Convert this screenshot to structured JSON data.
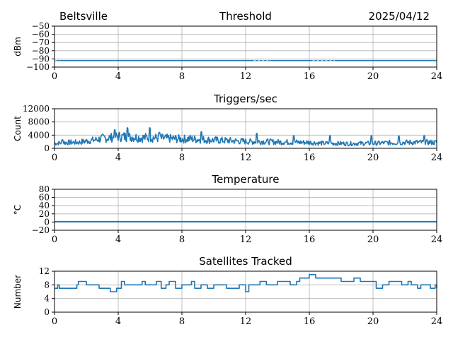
{
  "header": {
    "location": "Beltsville",
    "date": "2025/04/12"
  },
  "colors": {
    "series": "#1f77b4",
    "grid": "#b0b0b0",
    "axis": "#000000"
  },
  "chart_data": [
    {
      "type": "line",
      "title": "Threshold",
      "ylabel": "dBm",
      "xlim": [
        0,
        24
      ],
      "ylim": [
        -100,
        -50
      ],
      "xticks": [
        0,
        4,
        8,
        12,
        16,
        20,
        24
      ],
      "yticks": [
        -100,
        -90,
        -80,
        -70,
        -60,
        -50
      ],
      "xtick_labels": [
        "0",
        "4",
        "8",
        "12",
        "16",
        "20",
        "24"
      ],
      "ytick_labels": [
        "−100",
        "−90",
        "−80",
        "−70",
        "−60",
        "−50"
      ],
      "grid": true,
      "series": [
        {
          "x": [
            0,
            1,
            2,
            3,
            4,
            5,
            6,
            7,
            8,
            9,
            10,
            11,
            12,
            13,
            14,
            15,
            16,
            17,
            18,
            19,
            20,
            21,
            22,
            23,
            24
          ],
          "values": [
            -92,
            -92,
            -92,
            -92,
            -92,
            -92,
            -92,
            -92,
            -92,
            -92,
            -92,
            -92,
            -92,
            -92,
            -92,
            -92,
            -92,
            -92,
            -92,
            -92,
            -92,
            -92,
            -92,
            -92,
            -92
          ]
        }
      ]
    },
    {
      "type": "line",
      "title": "Triggers/sec",
      "ylabel": "Count",
      "xlim": [
        0,
        24
      ],
      "ylim": [
        0,
        12000
      ],
      "xticks": [
        0,
        4,
        8,
        12,
        16,
        20,
        24
      ],
      "yticks": [
        0,
        4000,
        8000,
        12000
      ],
      "xtick_labels": [
        "0",
        "4",
        "8",
        "12",
        "16",
        "20",
        "24"
      ],
      "ytick_labels": [
        "0",
        "4000",
        "8000",
        "12000"
      ],
      "grid": true,
      "series": [
        {
          "x": [
            0,
            0.5,
            1,
            1.5,
            2,
            2.5,
            3,
            3.5,
            4,
            4.5,
            5,
            5.5,
            6,
            6.5,
            7,
            7.5,
            8,
            8.5,
            9,
            9.5,
            10,
            10.5,
            11,
            11.5,
            12,
            12.5,
            13,
            13.5,
            14,
            14.5,
            15,
            15.5,
            16,
            16.5,
            17,
            17.5,
            18,
            18.5,
            19,
            19.5,
            20,
            20.5,
            21,
            21.5,
            22,
            22.5,
            23,
            23.5,
            24
          ],
          "values": [
            1500,
            1700,
            1800,
            1800,
            2200,
            2500,
            3000,
            3200,
            3600,
            3500,
            3400,
            3200,
            3300,
            3100,
            3000,
            2900,
            2800,
            2900,
            2700,
            2600,
            2500,
            2400,
            2300,
            2200,
            2100,
            2000,
            2100,
            2000,
            1900,
            1900,
            1900,
            1800,
            1800,
            1600,
            1500,
            1500,
            1500,
            1400,
            1500,
            1500,
            1500,
            1600,
            1700,
            1700,
            1800,
            1800,
            1800,
            1800,
            1800
          ],
          "peaks": [
            {
              "x": 0.5,
              "y": 2600
            },
            {
              "x": 3.8,
              "y": 5600
            },
            {
              "x": 4.6,
              "y": 6200
            },
            {
              "x": 6.0,
              "y": 6200
            },
            {
              "x": 6.6,
              "y": 4800
            },
            {
              "x": 9.2,
              "y": 5000
            },
            {
              "x": 12.7,
              "y": 4500
            },
            {
              "x": 15.0,
              "y": 3800
            },
            {
              "x": 17.3,
              "y": 3800
            },
            {
              "x": 19.9,
              "y": 3800
            },
            {
              "x": 21.6,
              "y": 3700
            },
            {
              "x": 23.2,
              "y": 3800
            }
          ]
        }
      ]
    },
    {
      "type": "line",
      "title": "Temperature",
      "ylabel": "°C",
      "xlim": [
        0,
        24
      ],
      "ylim": [
        -20,
        80
      ],
      "xticks": [
        0,
        4,
        8,
        12,
        16,
        20,
        24
      ],
      "yticks": [
        -20,
        0,
        20,
        40,
        60,
        80
      ],
      "xtick_labels": [
        "0",
        "4",
        "8",
        "12",
        "16",
        "20",
        "24"
      ],
      "ytick_labels": [
        "−20",
        "0",
        "20",
        "40",
        "60",
        "80"
      ],
      "grid": true,
      "series": [
        {
          "x": [
            0,
            24
          ],
          "values": [
            1,
            1
          ]
        }
      ]
    },
    {
      "type": "line",
      "title": "Satellites Tracked",
      "ylabel": "Number",
      "xlim": [
        0,
        24
      ],
      "ylim": [
        0,
        12
      ],
      "xticks": [
        0,
        4,
        8,
        12,
        16,
        20,
        24
      ],
      "yticks": [
        0,
        4,
        8,
        12
      ],
      "xtick_labels": [
        "0",
        "4",
        "8",
        "12",
        "16",
        "20",
        "24"
      ],
      "ytick_labels": [
        "0",
        "4",
        "8",
        "12"
      ],
      "grid": true,
      "series": [
        {
          "x": [
            0,
            0.2,
            0.3,
            0.5,
            1.0,
            1.4,
            1.5,
            2.0,
            2.1,
            2.8,
            3.5,
            3.9,
            4.2,
            4.4,
            4.8,
            5.2,
            5.5,
            5.7,
            6.2,
            6.4,
            6.6,
            6.7,
            7.0,
            7.2,
            7.6,
            8.0,
            8.3,
            8.6,
            8.8,
            9.2,
            9.6,
            10.0,
            10.4,
            10.8,
            11.2,
            11.6,
            12.0,
            12.2,
            12.6,
            12.9,
            13.3,
            13.6,
            14.0,
            14.4,
            14.8,
            15.2,
            15.4,
            15.7,
            16.0,
            16.4,
            17.0,
            17.4,
            18.0,
            18.4,
            18.8,
            19.2,
            19.8,
            20.2,
            20.6,
            21.0,
            21.4,
            21.8,
            22.2,
            22.4,
            22.6,
            22.8,
            23.0,
            23.6,
            23.9,
            24
          ],
          "values": [
            7,
            8,
            7,
            7,
            7,
            8,
            9,
            8,
            8,
            7,
            6,
            7,
            9,
            8,
            8,
            8,
            9,
            8,
            8,
            9,
            9,
            7,
            8,
            9,
            7,
            8,
            8,
            9,
            7,
            8,
            7,
            8,
            8,
            7,
            7,
            8,
            6,
            8,
            8,
            9,
            8,
            8,
            9,
            9,
            8,
            9,
            10,
            10,
            11,
            10,
            10,
            10,
            9,
            9,
            10,
            9,
            9,
            7,
            8,
            9,
            9,
            8,
            9,
            8,
            8,
            7,
            8,
            7,
            8,
            7
          ]
        }
      ]
    }
  ]
}
